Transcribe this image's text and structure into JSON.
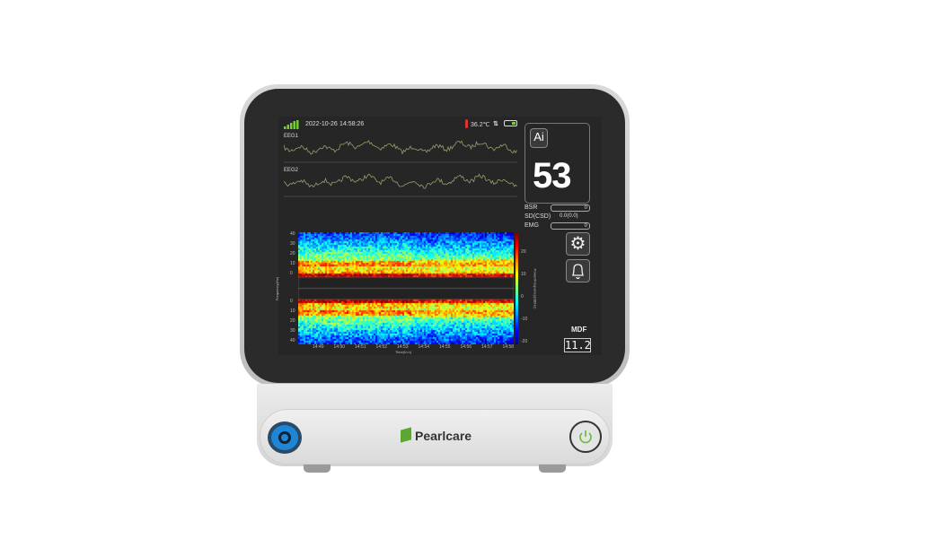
{
  "status_bar": {
    "date": "2022-10-26",
    "time": "14:58:26",
    "temperature": "36.2℃",
    "signal_icon": "signal-bars-icon",
    "battery_icon": "battery-icon",
    "thermometer_icon": "thermometer-icon",
    "transfer_icon": "up-down-arrows-icon"
  },
  "channels": [
    {
      "label": "EEG1"
    },
    {
      "label": "EEG2"
    }
  ],
  "index": {
    "badge": "Ai",
    "value": "53"
  },
  "params": [
    {
      "label": "BSR",
      "value": "0"
    },
    {
      "label": "SD(CSD)",
      "value": "0.0(0.0)"
    },
    {
      "label": "EMG",
      "value": "0"
    }
  ],
  "buttons": {
    "settings_icon": "gear-icon",
    "alarm_icon": "bell-icon"
  },
  "mdf": {
    "label": "MDF",
    "value": "11.2"
  },
  "spectrogram": {
    "y_ticks_top": [
      "40",
      "30",
      "20",
      "10",
      "0"
    ],
    "y_ticks_bottom": [
      "0",
      "10",
      "20",
      "30",
      "40"
    ],
    "x_ticks": [
      "14:49",
      "14:50",
      "14:51",
      "14:52",
      "14:53",
      "14:54",
      "14:55",
      "14:56",
      "14:57",
      "14:58"
    ],
    "xlabel": "Time(h:m)",
    "ylabel": "Frequency(Hz)",
    "colorbar_ticks": [
      "20",
      "10",
      "0",
      "-10",
      "-20"
    ],
    "colorbar_label": "Power/Frequency(dB/Hz)"
  },
  "brand": {
    "name": "Pearlcare",
    "color": "#5aa832"
  },
  "colors": {
    "wave": "#8fa36a",
    "connector": "#1e86d6",
    "power": "#6ab83a"
  }
}
